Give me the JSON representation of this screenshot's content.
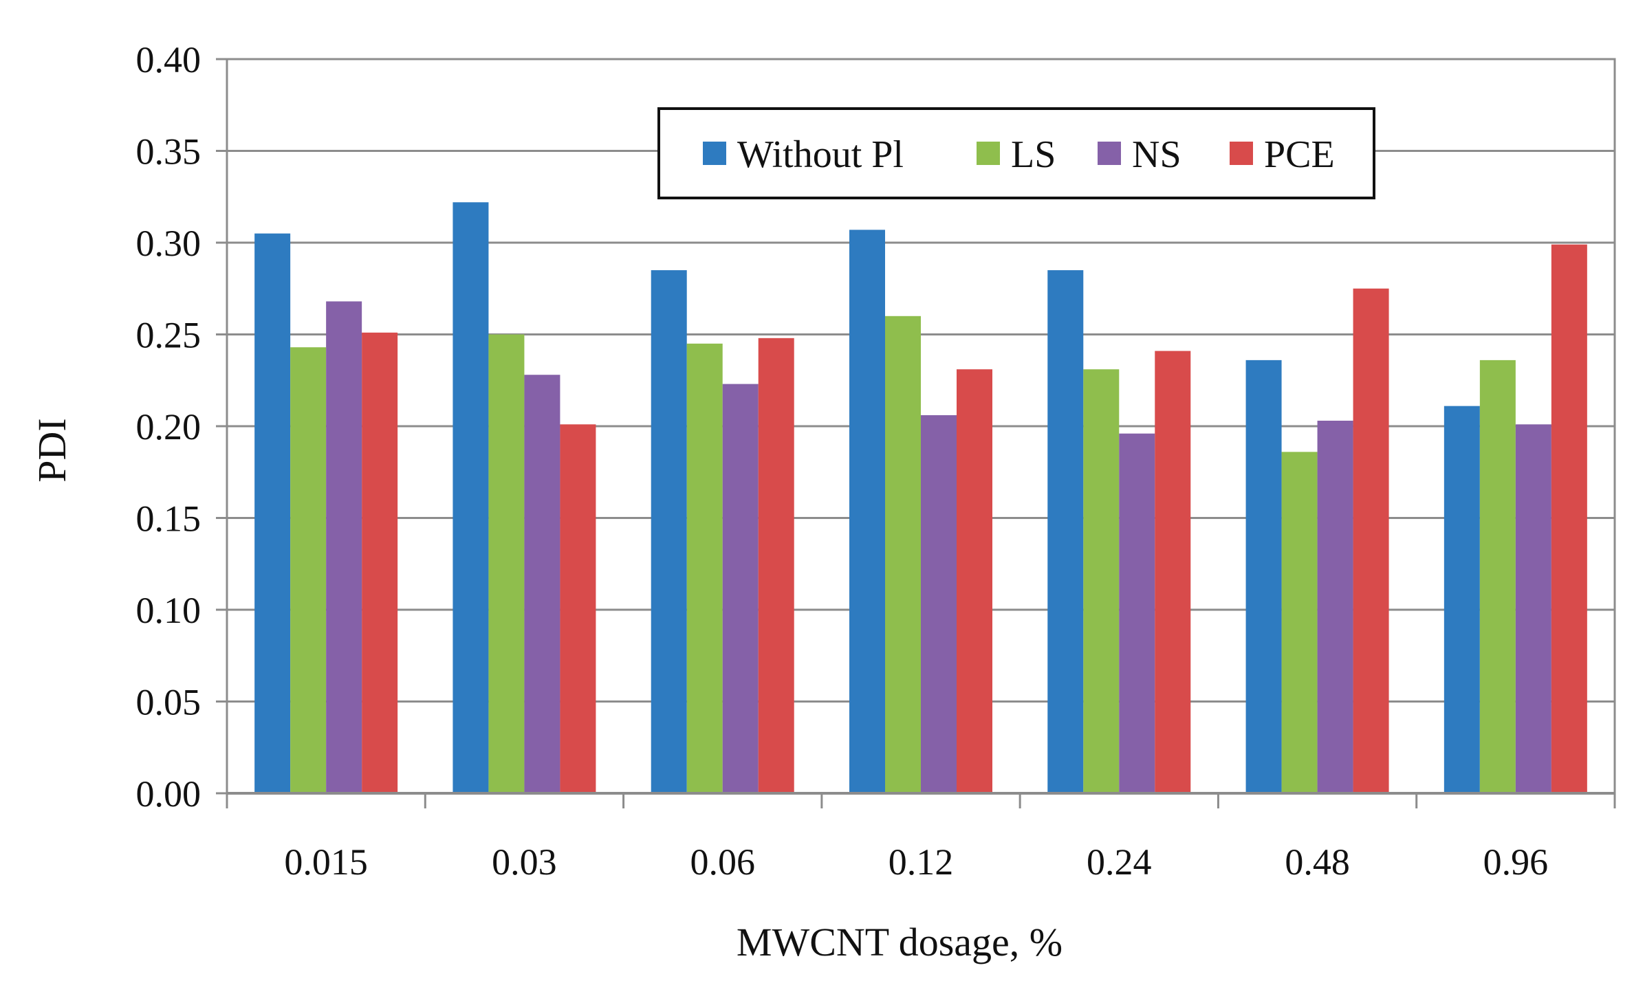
{
  "chart_data": {
    "type": "bar",
    "title": "",
    "xlabel": "MWCNT dosage, %",
    "ylabel": "PDI",
    "ylim": [
      0,
      0.4
    ],
    "yticks": [
      "0.00",
      "0.05",
      "0.10",
      "0.15",
      "0.20",
      "0.25",
      "0.30",
      "0.35",
      "0.40"
    ],
    "grid": true,
    "legend_position": "top-center",
    "categories": [
      "0.015",
      "0.03",
      "0.06",
      "0.12",
      "0.24",
      "0.48",
      "0.96"
    ],
    "series": [
      {
        "name": "Without Pl",
        "color": "#2e7bc0",
        "values": [
          0.305,
          0.322,
          0.285,
          0.307,
          0.285,
          0.236,
          0.211
        ]
      },
      {
        "name": "LS",
        "color": "#8fbe4d",
        "values": [
          0.243,
          0.25,
          0.245,
          0.26,
          0.231,
          0.186,
          0.236
        ]
      },
      {
        "name": "NS",
        "color": "#8561a8",
        "values": [
          0.268,
          0.228,
          0.223,
          0.206,
          0.196,
          0.203,
          0.201
        ]
      },
      {
        "name": "PCE",
        "color": "#d84b4b",
        "values": [
          0.251,
          0.201,
          0.248,
          0.231,
          0.241,
          0.275,
          0.299
        ]
      }
    ]
  }
}
